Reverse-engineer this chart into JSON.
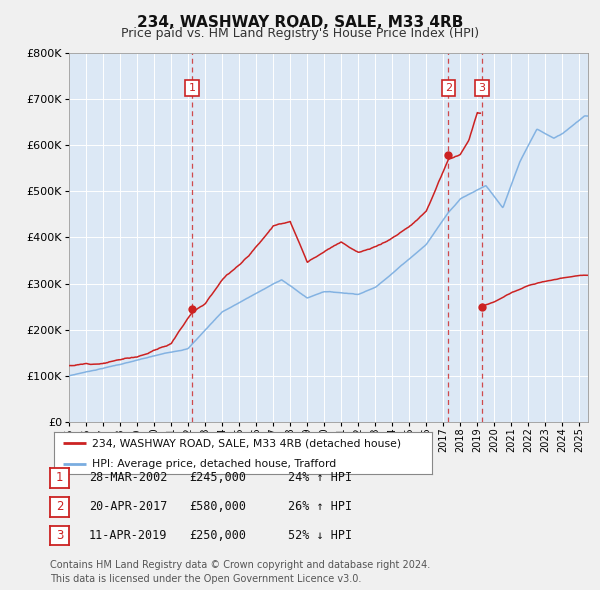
{
  "title": "234, WASHWAY ROAD, SALE, M33 4RB",
  "subtitle": "Price paid vs. HM Land Registry's House Price Index (HPI)",
  "title_fontsize": 11,
  "subtitle_fontsize": 9,
  "ylim": [
    0,
    800000
  ],
  "yticks": [
    0,
    100000,
    200000,
    300000,
    400000,
    500000,
    600000,
    700000,
    800000
  ],
  "ytick_labels": [
    "£0",
    "£100K",
    "£200K",
    "£300K",
    "£400K",
    "£500K",
    "£600K",
    "£700K",
    "£800K"
  ],
  "xlim_start": 1995.0,
  "xlim_end": 2025.5,
  "hpi_color": "#7aade0",
  "price_color": "#cc2222",
  "dot_color": "#cc2222",
  "vline_color": "#cc2222",
  "bg_color": "#dce8f5",
  "grid_color": "#ffffff",
  "fig_bg_color": "#f0f0f0",
  "legend_label_price": "234, WASHWAY ROAD, SALE, M33 4RB (detached house)",
  "legend_label_hpi": "HPI: Average price, detached house, Trafford",
  "transactions": [
    {
      "num": 1,
      "date": "28-MAR-2002",
      "price": 245000,
      "pct": "24%",
      "dir": "↑",
      "year": 2002.24
    },
    {
      "num": 2,
      "date": "20-APR-2017",
      "price": 580000,
      "pct": "26%",
      "dir": "↑",
      "year": 2017.3
    },
    {
      "num": 3,
      "date": "11-APR-2019",
      "price": 250000,
      "pct": "52%",
      "dir": "↓",
      "year": 2019.28
    }
  ],
  "footer": "Contains HM Land Registry data © Crown copyright and database right 2024.\nThis data is licensed under the Open Government Licence v3.0.",
  "footer_fontsize": 7.0,
  "hpi_keypoints": [
    [
      1995.0,
      100000
    ],
    [
      2002.0,
      160000
    ],
    [
      2004.0,
      240000
    ],
    [
      2007.5,
      310000
    ],
    [
      2009.0,
      270000
    ],
    [
      2010.0,
      285000
    ],
    [
      2012.0,
      280000
    ],
    [
      2013.0,
      295000
    ],
    [
      2016.0,
      390000
    ],
    [
      2017.3,
      460000
    ],
    [
      2018.0,
      490000
    ],
    [
      2019.0,
      510000
    ],
    [
      2019.5,
      520000
    ],
    [
      2020.5,
      470000
    ],
    [
      2021.5,
      570000
    ],
    [
      2022.5,
      640000
    ],
    [
      2023.5,
      620000
    ],
    [
      2024.0,
      630000
    ],
    [
      2025.3,
      670000
    ]
  ],
  "price_keypoints": [
    [
      1995.0,
      122000
    ],
    [
      1997.0,
      130000
    ],
    [
      1999.0,
      145000
    ],
    [
      2001.0,
      175000
    ],
    [
      2002.24,
      245000
    ],
    [
      2003.0,
      265000
    ],
    [
      2004.0,
      320000
    ],
    [
      2005.5,
      370000
    ],
    [
      2007.0,
      440000
    ],
    [
      2008.0,
      450000
    ],
    [
      2009.0,
      360000
    ],
    [
      2010.0,
      380000
    ],
    [
      2011.0,
      400000
    ],
    [
      2012.0,
      380000
    ],
    [
      2013.0,
      390000
    ],
    [
      2014.0,
      410000
    ],
    [
      2015.0,
      435000
    ],
    [
      2016.0,
      470000
    ],
    [
      2017.3,
      580000
    ],
    [
      2018.0,
      590000
    ],
    [
      2018.5,
      620000
    ],
    [
      2019.0,
      680000
    ],
    [
      2019.28,
      250000
    ],
    [
      2020.0,
      260000
    ],
    [
      2021.0,
      280000
    ],
    [
      2022.0,
      295000
    ],
    [
      2023.0,
      305000
    ],
    [
      2024.0,
      310000
    ],
    [
      2025.3,
      315000
    ]
  ]
}
